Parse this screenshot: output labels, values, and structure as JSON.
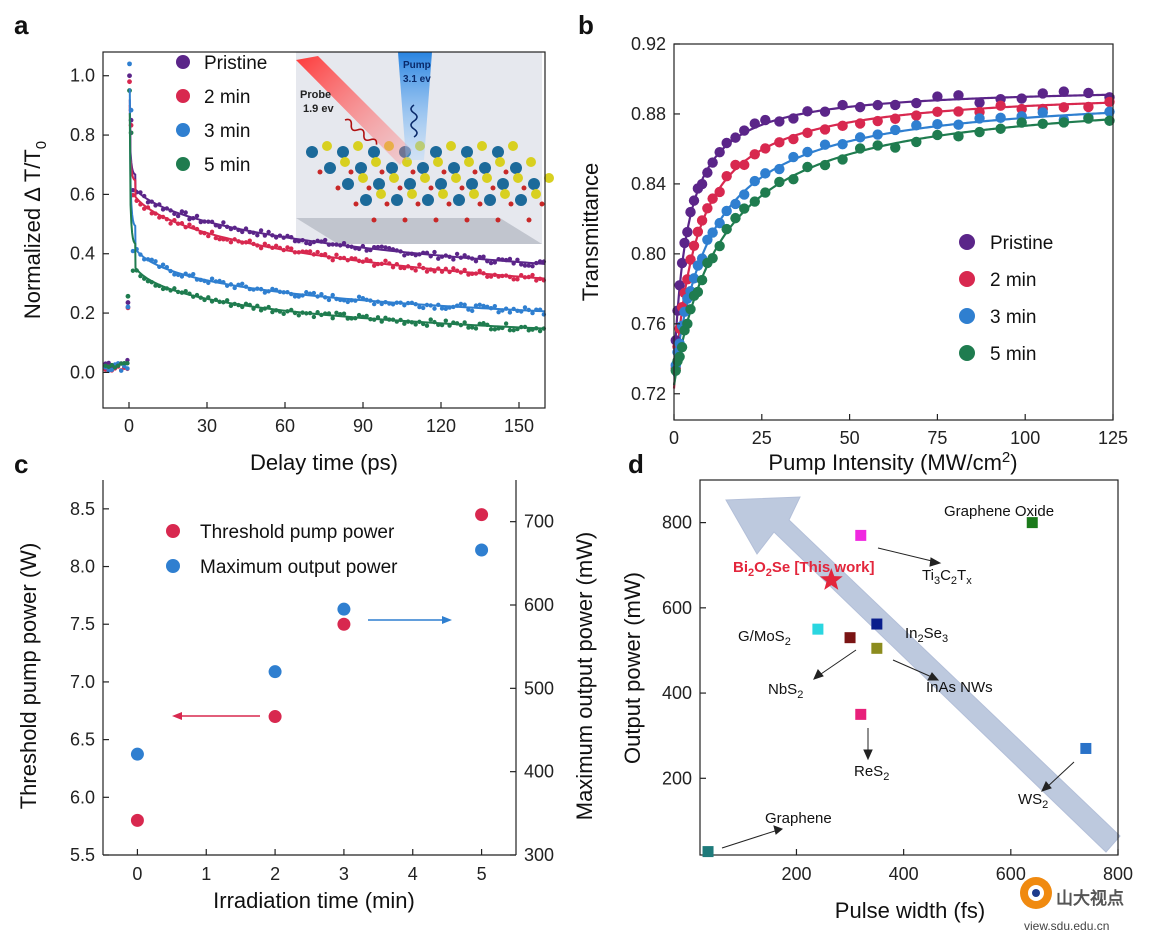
{
  "colors": {
    "pristine": "#5b2589",
    "min2": "#d8284f",
    "min3": "#2f7fd0",
    "min5": "#1f7c4f",
    "threshold": "#d8284f",
    "max_output": "#2f7fd0",
    "axis": "#222222",
    "arrow_band": "#a8b8d4",
    "star": "#e3263c"
  },
  "chart_data": [
    {
      "panel": "a",
      "type": "scatter",
      "xlabel": "Delay time (ps)",
      "ylabel_main": "Normalized  Δ T/T",
      "ylabel_sub": "0",
      "xlim": [
        -10,
        160
      ],
      "ylim": [
        -0.12,
        1.08
      ],
      "xticks": [
        "0",
        "30",
        "60",
        "90",
        "120",
        "150"
      ],
      "yticks": [
        "0.0",
        "0.2",
        "0.4",
        "0.6",
        "0.8",
        "1.0"
      ],
      "legend_position": "top-left",
      "series": [
        {
          "name": "Pristine",
          "color_key": "pristine",
          "plateau": 0.665,
          "b": 0.52,
          "tau": 215,
          "c": 0.145,
          "peak": 1.0,
          "pre": 0.03
        },
        {
          "name": "2 min",
          "color_key": "min2",
          "plateau": 0.645,
          "b": 0.53,
          "tau": 165,
          "c": 0.12,
          "peak": 0.98,
          "pre": 0.02
        },
        {
          "name": "3 min",
          "color_key": "min3",
          "plateau": 0.49,
          "b": 0.42,
          "tau": 120,
          "c": 0.07,
          "peak": 1.04,
          "pre": 0.02
        },
        {
          "name": "5 min",
          "color_key": "min5",
          "plateau": 0.43,
          "b": 0.41,
          "tau": 110,
          "c": 0.02,
          "peak": 0.95,
          "pre": 0.03
        }
      ],
      "inset": {
        "probe_label": "Probe",
        "probe_energy": "1.9 ev",
        "pump_label": "Pump",
        "pump_energy": "3.1 ev"
      }
    },
    {
      "panel": "b",
      "type": "scatter",
      "xlabel": "Pump Intensity (MW/cm",
      "xlabel_sup": "2",
      "xlabel_tail": ")",
      "ylabel": "Transmittance",
      "xlim": [
        0,
        125
      ],
      "ylim": [
        0.705,
        0.92
      ],
      "xticks": [
        0,
        25,
        50,
        75,
        100,
        125
      ],
      "yticks": [
        "0.72",
        "0.76",
        "0.80",
        "0.84",
        "0.88",
        "0.92"
      ],
      "legend_position": "bottom-right",
      "series": [
        {
          "name": "Pristine",
          "color_key": "pristine",
          "T0": 0.735,
          "Tsat": 0.896,
          "Is": 4.0
        },
        {
          "name": "2 min",
          "color_key": "min2",
          "T0": 0.723,
          "Tsat": 0.895,
          "Is": 6.5
        },
        {
          "name": "3 min",
          "color_key": "min3",
          "T0": 0.73,
          "Tsat": 0.894,
          "Is": 11.0
        },
        {
          "name": "5 min",
          "color_key": "min5",
          "T0": 0.725,
          "Tsat": 0.894,
          "Is": 14.0
        }
      ]
    },
    {
      "panel": "c",
      "type": "scatter",
      "xlabel": "Irradiation time (min)",
      "ylabel_left": "Threshold pump power (W)",
      "ylabel_right": "Maximum output power (mW)",
      "xlim": [
        -0.5,
        5.5
      ],
      "ylim_left": [
        5.5,
        8.75
      ],
      "ylim_right": [
        300,
        750
      ],
      "xticks": [
        0,
        1,
        2,
        3,
        4,
        5
      ],
      "yticks_left": [
        "5.5",
        "6.0",
        "6.5",
        "7.0",
        "7.5",
        "8.0",
        "8.5"
      ],
      "yticks_right": [
        300,
        400,
        500,
        600,
        700
      ],
      "legend_position": "top-left",
      "series": [
        {
          "name": "Threshold pump power",
          "color_key": "threshold",
          "axis": "left",
          "x": [
            0,
            2,
            3,
            5
          ],
          "y": [
            5.8,
            6.7,
            7.5,
            8.45
          ]
        },
        {
          "name": "Maximum output power",
          "color_key": "max_output",
          "axis": "right",
          "x": [
            0,
            2,
            3,
            5
          ],
          "y": [
            421,
            520,
            595,
            666
          ]
        }
      ]
    },
    {
      "panel": "d",
      "type": "scatter",
      "xlabel": "Pulse width (fs)",
      "ylabel": "Output power (mW)",
      "xlim": [
        20,
        800
      ],
      "ylim": [
        20,
        900
      ],
      "xticks": [
        200,
        400,
        600,
        800
      ],
      "yticks": [
        200,
        400,
        600,
        800
      ],
      "points": [
        {
          "label": "Graphene Oxide",
          "x": 640,
          "y": 800,
          "color": "#1b7a1b"
        },
        {
          "label": "Ti3C2Tx",
          "x": 320,
          "y": 770,
          "color": "#f028e0"
        },
        {
          "label": "In2Se3",
          "x": 350,
          "y": 562,
          "color": "#0a1e8c"
        },
        {
          "label": "G/MoS2",
          "x": 240,
          "y": 550,
          "color": "#2ad6e0"
        },
        {
          "label": "NbS2",
          "x": 300,
          "y": 530,
          "color": "#7a1414"
        },
        {
          "label": "InAs NWs",
          "x": 350,
          "y": 505,
          "color": "#8c8c1e"
        },
        {
          "label": "ReS2",
          "x": 320,
          "y": 350,
          "color": "#e8207a"
        },
        {
          "label": "WS2",
          "x": 740,
          "y": 270,
          "color": "#2a72c8"
        },
        {
          "label": "Graphene",
          "x": 35,
          "y": 28,
          "color": "#1e7a7a"
        }
      ],
      "star": {
        "label": "Bi2O2Se [This work]",
        "x": 265,
        "y": 665
      }
    }
  ],
  "panel_labels": [
    "a",
    "b",
    "c",
    "d"
  ],
  "watermark": {
    "text": "山大视点",
    "url": "view.sdu.edu.cn"
  }
}
